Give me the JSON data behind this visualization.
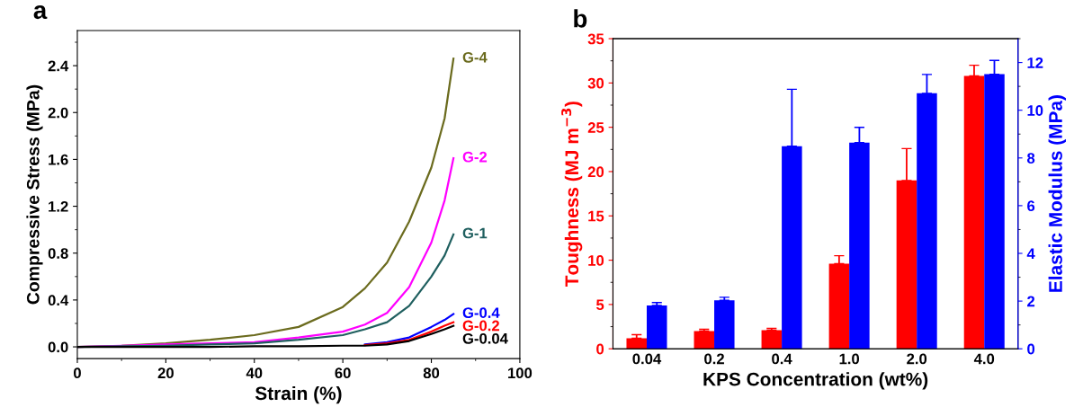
{
  "chart_data": [
    {
      "type": "line",
      "xlabel": "Strain (%)",
      "ylabel": "Compressive Stress (MPa)",
      "annotations": [
        "a"
      ],
      "xlim": [
        0,
        100
      ],
      "xticks": [
        0,
        20,
        40,
        60,
        80,
        100
      ],
      "ylim": [
        -0.1,
        2.7
      ],
      "yticks": [
        {
          "value": 0,
          "label": "0.0"
        },
        0.4,
        0.8,
        1.2,
        1.6,
        {
          "value": 2,
          "label": "2.0"
        },
        2.4
      ],
      "grid": false,
      "legend": false,
      "x": [
        0,
        10,
        20,
        30,
        40,
        50,
        60,
        65,
        70,
        75,
        80,
        83,
        85
      ],
      "series": [
        {
          "name": "G-4",
          "color": "#6b6b1e",
          "values": [
            0,
            0.01,
            0.03,
            0.06,
            0.1,
            0.17,
            0.34,
            0.5,
            0.72,
            1.07,
            1.53,
            1.95,
            2.46
          ]
        },
        {
          "name": "G-2",
          "color": "#ff00ff",
          "values": [
            0,
            0.01,
            0.02,
            0.03,
            0.04,
            0.08,
            0.13,
            0.19,
            0.29,
            0.51,
            0.89,
            1.25,
            1.61
          ]
        },
        {
          "name": "G-1",
          "color": "#1f5f5f",
          "values": [
            0,
            0.005,
            0.01,
            0.02,
            0.03,
            0.06,
            0.1,
            0.15,
            0.21,
            0.35,
            0.6,
            0.78,
            0.96
          ]
        },
        {
          "name": "G-0.4",
          "color": "#0000ff",
          "values": [
            null,
            null,
            null,
            null,
            null,
            null,
            null,
            0.02,
            0.04,
            0.08,
            0.17,
            0.23,
            0.28
          ]
        },
        {
          "name": "G-0.2",
          "color": "#ff0000",
          "values": [
            null,
            null,
            null,
            null,
            null,
            null,
            null,
            0.015,
            0.03,
            0.06,
            0.13,
            0.18,
            0.21
          ]
        },
        {
          "name": "G-0.04",
          "color": "#000000",
          "values": [
            0,
            0,
            0,
            0,
            0.005,
            0.005,
            0.01,
            0.01,
            0.02,
            0.05,
            0.11,
            0.15,
            0.18
          ]
        }
      ]
    },
    {
      "type": "bar",
      "xlabel": "KPS Concentration (wt%)",
      "ylabel": "Toughness (MJ m$^{−3}$)",
      "y2label": "Elastic Modulus (MPa)",
      "annotations": [
        "b"
      ],
      "categories": [
        "0.04",
        "0.2",
        "0.4",
        "1.0",
        "2.0",
        "4.0"
      ],
      "ylim": [
        0,
        35
      ],
      "yticks": [
        0,
        5,
        10,
        15,
        20,
        25,
        30,
        35
      ],
      "y2lim": [
        0,
        13
      ],
      "y2ticks": [
        0,
        2,
        4,
        6,
        8,
        10,
        12
      ],
      "grid": false,
      "series": [
        {
          "color": "#ff0000",
          "values": [
            1.2,
            2.0,
            2.1,
            9.6,
            19.0,
            30.8
          ],
          "errors": [
            [
              1.2,
              1.6
            ],
            [
              2.0,
              2.2
            ],
            [
              2.1,
              2.3
            ],
            [
              9.6,
              10.5
            ],
            [
              19.0,
              22.6
            ],
            [
              30.8,
              32.0
            ]
          ]
        },
        {
          "color": "#0000ff",
          "axis": "y2",
          "values": [
            1.82,
            2.03,
            8.49,
            8.64,
            10.71,
            11.51
          ],
          "errors": [
            [
              1.82,
              1.94
            ],
            [
              2.03,
              2.16
            ],
            [
              8.49,
              10.88
            ],
            [
              8.64,
              9.28
            ],
            [
              10.71,
              11.5
            ],
            [
              11.51,
              12.09
            ]
          ]
        }
      ]
    }
  ]
}
